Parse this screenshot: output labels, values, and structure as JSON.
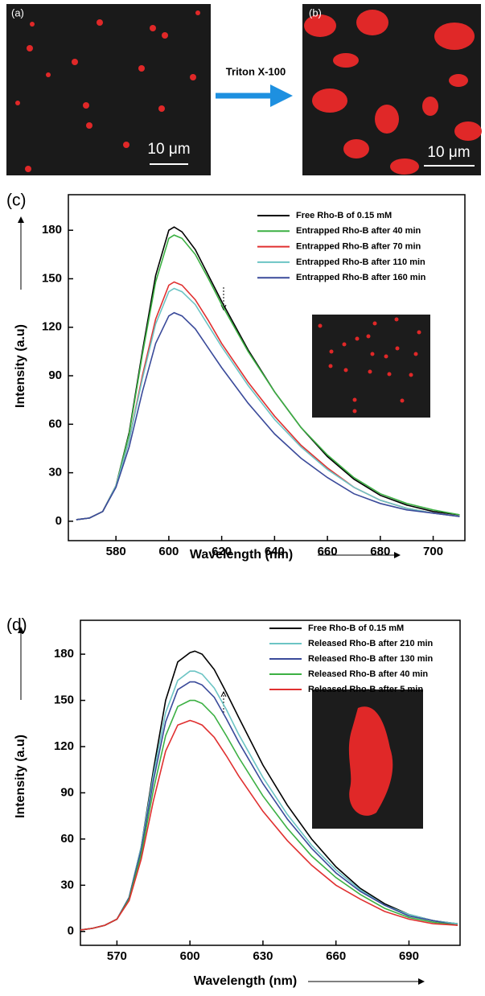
{
  "figure": {
    "panel_a": {
      "label": "(a)",
      "scale_bar": "10 μm"
    },
    "panel_b": {
      "label": "(b)",
      "scale_bar": "10 μm"
    },
    "treatment": "Triton X-100"
  },
  "chart_data": [
    {
      "type": "line",
      "panel_label": "(c)",
      "x_label": "Wavelength (nm)",
      "y_label": "Intensity (a.u)",
      "x": [
        565,
        570,
        575,
        580,
        585,
        590,
        595,
        600,
        602,
        605,
        610,
        615,
        620,
        630,
        640,
        650,
        660,
        670,
        680,
        690,
        700,
        710
      ],
      "series": [
        {
          "name": "Free Rho-B of 0.15 mM",
          "color": "#000000",
          "values": [
            1,
            2,
            6,
            22,
            55,
            105,
            152,
            180,
            182,
            179,
            168,
            152,
            136,
            106,
            80,
            58,
            40,
            26,
            16,
            10,
            6,
            4
          ]
        },
        {
          "name": "Entrapped Rho-B after 40 min",
          "color": "#3cb043",
          "values": [
            1,
            2,
            6,
            22,
            54,
            103,
            148,
            175,
            177,
            175,
            165,
            150,
            134,
            105,
            80,
            58,
            41,
            27,
            17,
            11,
            7,
            4
          ]
        },
        {
          "name": "Entrapped Rho-B after 70 min",
          "color": "#e03030",
          "values": [
            1,
            2,
            6,
            22,
            50,
            90,
            125,
            146,
            148,
            146,
            137,
            124,
            110,
            86,
            65,
            47,
            33,
            21,
            13,
            8,
            5,
            3
          ]
        },
        {
          "name": "Entrapped Rho-B after 110 min",
          "color": "#6cc4c4",
          "values": [
            1,
            2,
            6,
            22,
            50,
            88,
            122,
            142,
            144,
            142,
            134,
            121,
            108,
            84,
            63,
            46,
            32,
            21,
            13,
            8,
            5,
            3
          ]
        },
        {
          "name": "Entrapped Rho-B after 160 min",
          "color": "#3a4a9a",
          "values": [
            1,
            2,
            6,
            21,
            46,
            80,
            110,
            127,
            129,
            127,
            119,
            107,
            95,
            73,
            54,
            39,
            27,
            17,
            11,
            7,
            5,
            3
          ]
        }
      ],
      "xlim": [
        562,
        712
      ],
      "ylim": [
        -12,
        202
      ],
      "xticks": [
        580,
        600,
        620,
        640,
        660,
        680,
        700
      ],
      "yticks": [
        0,
        30,
        60,
        90,
        120,
        150,
        180
      ]
    },
    {
      "type": "line",
      "panel_label": "(d)",
      "x_label": "Wavelength (nm)",
      "y_label": "Intensity (a.u)",
      "x": [
        555,
        560,
        565,
        570,
        575,
        580,
        585,
        590,
        595,
        600,
        602,
        605,
        610,
        615,
        620,
        630,
        640,
        650,
        660,
        670,
        680,
        690,
        700,
        710
      ],
      "series": [
        {
          "name": "Free Rho-B of 0.15 mM",
          "color": "#000000",
          "values": [
            1,
            2,
            4,
            8,
            22,
            55,
            105,
            150,
            175,
            181,
            182,
            180,
            170,
            155,
            139,
            108,
            82,
            60,
            42,
            28,
            18,
            11,
            7,
            5
          ]
        },
        {
          "name": "Released Rho-B after 210 min",
          "color": "#6cc4c4",
          "values": [
            1,
            2,
            4,
            8,
            22,
            55,
            102,
            142,
            163,
            169,
            169,
            167,
            158,
            144,
            128,
            100,
            76,
            56,
            40,
            27,
            17,
            11,
            7,
            5
          ]
        },
        {
          "name": "Released Rho-B after 130 min",
          "color": "#3a4a9a",
          "values": [
            1,
            2,
            4,
            8,
            22,
            53,
            98,
            136,
            157,
            162,
            162,
            160,
            152,
            138,
            123,
            96,
            73,
            54,
            38,
            26,
            17,
            10,
            7,
            4
          ]
        },
        {
          "name": "Released Rho-B after 40 min",
          "color": "#3cb043",
          "values": [
            1,
            2,
            4,
            8,
            21,
            50,
            92,
            127,
            146,
            150,
            150,
            148,
            140,
            127,
            113,
            88,
            67,
            49,
            35,
            24,
            15,
            9,
            6,
            4
          ]
        },
        {
          "name": "Released Rho-B after 5 min",
          "color": "#e03030",
          "values": [
            1,
            2,
            4,
            8,
            20,
            47,
            85,
            117,
            134,
            137,
            136,
            134,
            126,
            114,
            101,
            78,
            59,
            43,
            30,
            21,
            13,
            8,
            5,
            4
          ]
        }
      ],
      "xlim": [
        555,
        711
      ],
      "ylim": [
        -9,
        202
      ],
      "xticks": [
        570,
        600,
        630,
        660,
        690
      ],
      "yticks": [
        0,
        30,
        60,
        90,
        120,
        150,
        180
      ]
    }
  ]
}
